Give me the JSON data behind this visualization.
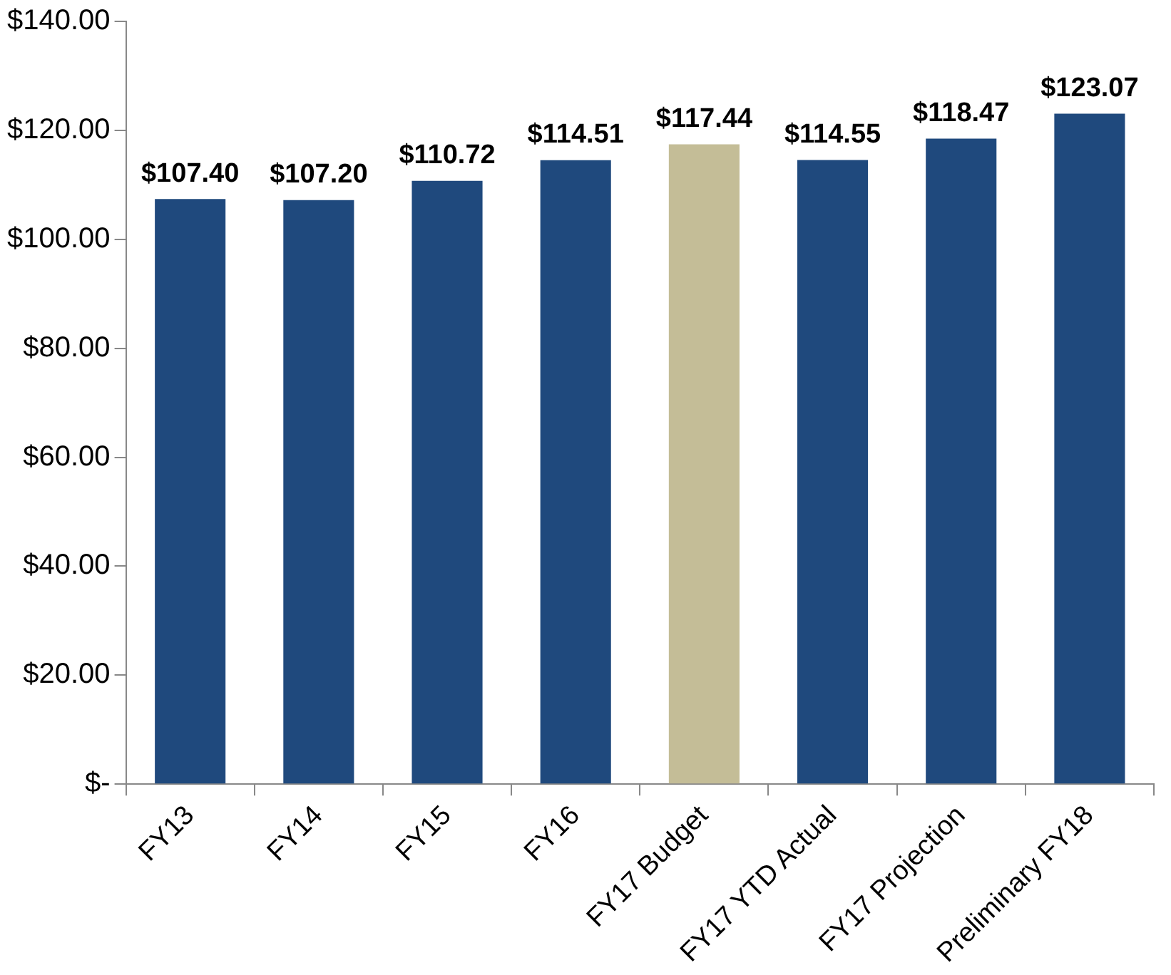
{
  "chart_data": {
    "type": "bar",
    "categories": [
      "FY13",
      "FY14",
      "FY15",
      "FY16",
      "FY17 Budget",
      "FY17 YTD Actual",
      "FY17 Projection",
      "Preliminary FY18"
    ],
    "values": [
      107.4,
      107.2,
      110.72,
      114.51,
      117.44,
      114.55,
      118.47,
      123.07
    ],
    "colors": [
      "#1f497d",
      "#1f497d",
      "#1f497d",
      "#1f497d",
      "#c4bd97",
      "#1f497d",
      "#1f497d",
      "#1f497d"
    ],
    "value_labels": [
      "$107.40",
      "$107.20",
      "$110.72",
      "$114.51",
      "$117.44",
      "$114.55",
      "$118.47",
      "$123.07"
    ],
    "ylim": [
      0,
      140
    ],
    "yticks": [
      {
        "value": 0,
        "label": "$-"
      },
      {
        "value": 20,
        "label": "$20.00"
      },
      {
        "value": 40,
        "label": "$40.00"
      },
      {
        "value": 60,
        "label": "$60.00"
      },
      {
        "value": 80,
        "label": "$80.00"
      },
      {
        "value": 100,
        "label": "$100.00"
      },
      {
        "value": 120,
        "label": "$120.00"
      },
      {
        "value": 140,
        "label": "$140.00"
      }
    ],
    "grid": false,
    "legend": false
  }
}
